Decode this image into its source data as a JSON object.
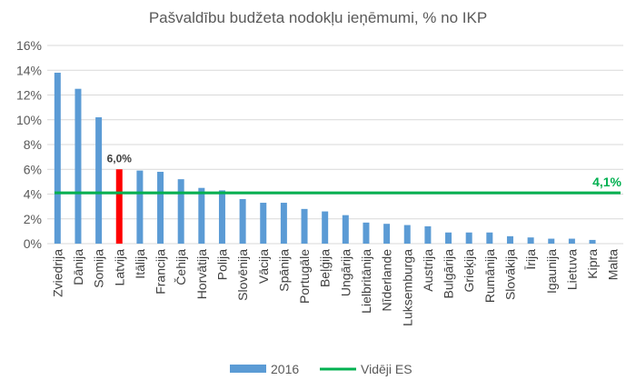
{
  "chart_data": {
    "type": "bar",
    "title": "Pašvaldību budžeta nodokļu ieņēmumi, % no IKP",
    "categories": [
      "Zviedrija",
      "Dānija",
      "Somija",
      "Latvija",
      "Itālija",
      "Francija",
      "Čehija",
      "Horvātija",
      "Polija",
      "Slovēnija",
      "Vācija",
      "Spānija",
      "Portugāle",
      "Beļģija",
      "Ungārija",
      "Lielbritānija",
      "Nīderlande",
      "Luksemburga",
      "Austrija",
      "Bulgārija",
      "Grieķija",
      "Rumānija",
      "Slovākija",
      "Īrija",
      "Igaunija",
      "Lietuva",
      "Kipra",
      "Malta"
    ],
    "series": [
      {
        "name": "2016",
        "values": [
          13.8,
          12.5,
          10.2,
          6.0,
          5.9,
          5.8,
          5.2,
          4.5,
          4.3,
          3.6,
          3.3,
          3.3,
          2.8,
          2.6,
          2.3,
          1.7,
          1.6,
          1.5,
          1.4,
          0.9,
          0.9,
          0.9,
          0.6,
          0.5,
          0.4,
          0.4,
          0.3,
          0.0
        ]
      },
      {
        "name": "Vidēji ES",
        "type": "line",
        "value": 4.1
      }
    ],
    "highlight_category": "Latvija",
    "highlight_label": "6,0%",
    "average_label": "4,1%",
    "yticks": [
      "0%",
      "2%",
      "4%",
      "6%",
      "8%",
      "10%",
      "12%",
      "14%",
      "16%"
    ],
    "ylim": [
      0,
      16
    ],
    "colors": {
      "bar": "#5b9bd5",
      "highlight": "#ff0000",
      "average": "#00b050",
      "grid": "#d9d9d9"
    },
    "legend_position": "bottom",
    "grid": true
  }
}
